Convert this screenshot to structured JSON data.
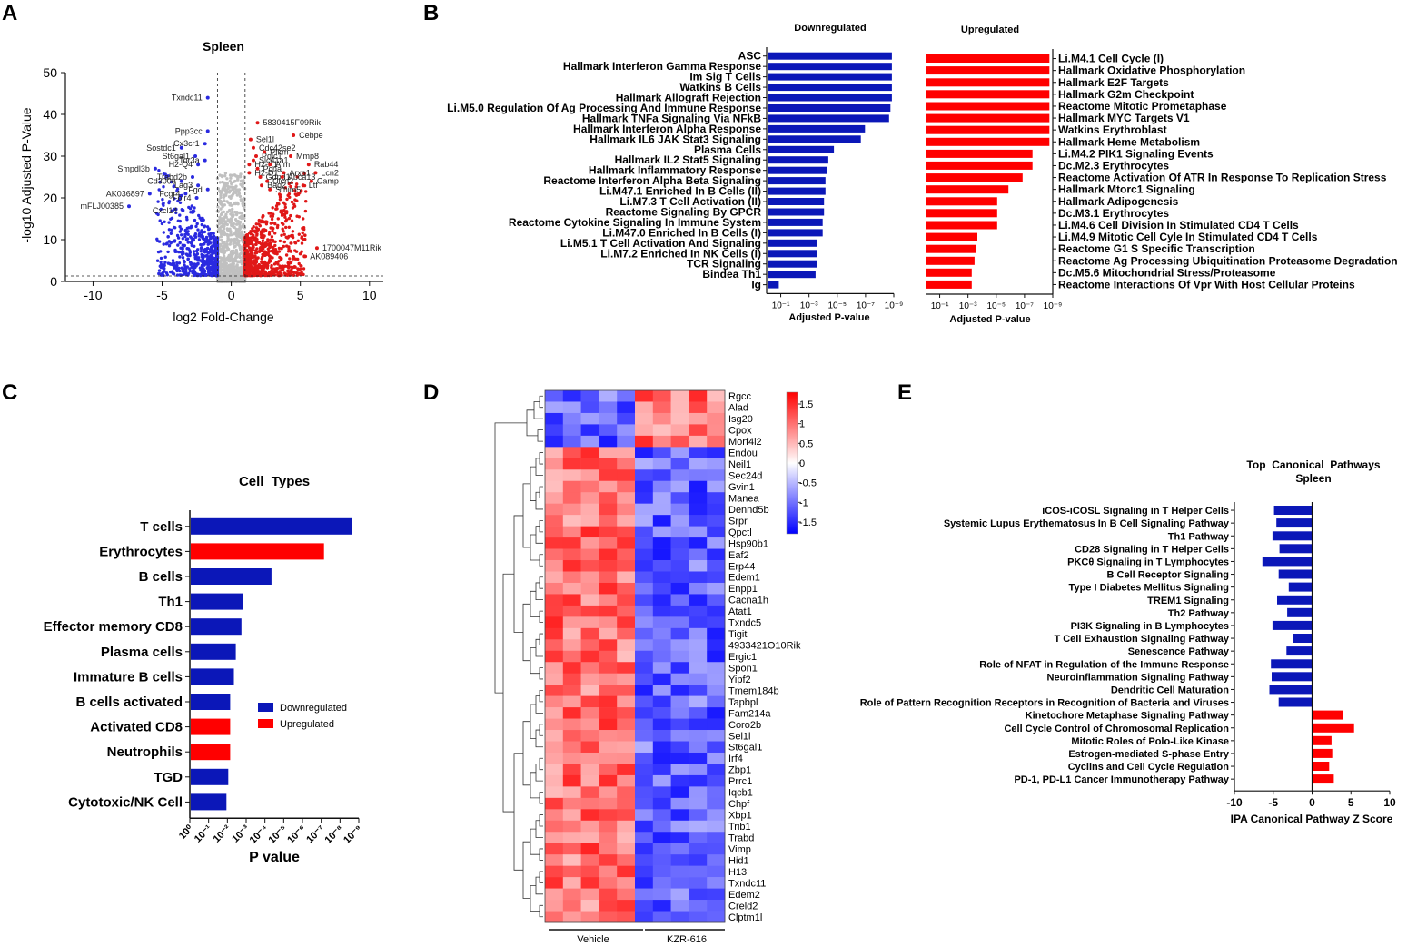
{
  "panels": {
    "A": "A",
    "B": "B",
    "C": "C",
    "D": "D",
    "E": "E"
  },
  "colors": {
    "down": "#0b17b8",
    "up": "#ff0000",
    "down_pt": "#2a2ae0",
    "up_pt": "#e01818",
    "ns_pt": "#c0c0c0"
  },
  "chart_data": [
    {
      "id": "A",
      "type": "scatter",
      "title": "Spleen",
      "xlabel": "log2 Fold-Change",
      "ylabel": "-log10 Adjusted P-Value",
      "xlim": [
        -12,
        11
      ],
      "ylim": [
        0,
        50
      ],
      "xticks": [
        "-10",
        "-5",
        "0",
        "5",
        "10"
      ],
      "yticks": [
        "0",
        "10",
        "20",
        "30",
        "40",
        "50"
      ],
      "thresholds": {
        "fc": [
          -1,
          1
        ],
        "padj": 1.3
      },
      "down_labels": [
        {
          "gene": "Txndc11",
          "x": -1.7,
          "y": 44
        },
        {
          "gene": "Ppp3cc",
          "x": -1.7,
          "y": 36
        },
        {
          "gene": "Cx3cr1",
          "x": -1.9,
          "y": 33
        },
        {
          "gene": "Sostdc1",
          "x": -3.6,
          "y": 32
        },
        {
          "gene": "St6gal1",
          "x": -2.6,
          "y": 30
        },
        {
          "gene": "Tor3a",
          "x": -1.9,
          "y": 29
        },
        {
          "gene": "H2-Q4",
          "x": -2.4,
          "y": 28
        },
        {
          "gene": "Smpdl3b",
          "x": -5.5,
          "y": 27
        },
        {
          "gene": "Trabd2b",
          "x": -2.8,
          "y": 25
        },
        {
          "gene": "Cd300e",
          "x": -3.6,
          "y": 24
        },
        {
          "gene": "Lag3",
          "x": -2.4,
          "y": 23
        },
        {
          "gene": "Fgd",
          "x": -1.7,
          "y": 22
        },
        {
          "gene": "AK036897",
          "x": -5.9,
          "y": 21
        },
        {
          "gene": "Fcgr4",
          "x": -3.3,
          "y": 21
        },
        {
          "gene": "Folr4",
          "x": -2.5,
          "y": 20
        },
        {
          "gene": "mFLJ00385",
          "x": -7.4,
          "y": 18
        },
        {
          "gene": "Cxcl14",
          "x": -3.5,
          "y": 17
        }
      ],
      "up_labels": [
        {
          "gene": "5830415F09Rik",
          "x": 1.9,
          "y": 38
        },
        {
          "gene": "Cebpe",
          "x": 4.5,
          "y": 35
        },
        {
          "gene": "Sel1l",
          "x": 1.4,
          "y": 34
        },
        {
          "gene": "Cdc42se2",
          "x": 1.6,
          "y": 32
        },
        {
          "gene": "Pqlc1",
          "x": 1.8,
          "y": 30
        },
        {
          "gene": "Pfkm",
          "x": 2.4,
          "y": 31
        },
        {
          "gene": "Slc41a1",
          "x": 1.6,
          "y": 29
        },
        {
          "gene": "H2-K1",
          "x": 1.3,
          "y": 28
        },
        {
          "gene": "Pcna",
          "x": 1.9,
          "y": 27
        },
        {
          "gene": "H2-D1",
          "x": 1.3,
          "y": 26
        },
        {
          "gene": "Mmp8",
          "x": 4.3,
          "y": 30
        },
        {
          "gene": "Afm",
          "x": 2.8,
          "y": 28
        },
        {
          "gene": "Rab44",
          "x": 5.6,
          "y": 28
        },
        {
          "gene": "Arxa1",
          "x": 3.8,
          "y": 26
        },
        {
          "gene": "Lcn2",
          "x": 6.1,
          "y": 26
        },
        {
          "gene": "Gdpd1",
          "x": 2.1,
          "y": 25
        },
        {
          "gene": "Abca13",
          "x": 3.7,
          "y": 25
        },
        {
          "gene": "Camp",
          "x": 5.8,
          "y": 24
        },
        {
          "gene": "Clcn2",
          "x": 2.6,
          "y": 24
        },
        {
          "gene": "Ltf",
          "x": 5.2,
          "y": 23
        },
        {
          "gene": "Bag2",
          "x": 2.2,
          "y": 23
        },
        {
          "gene": "Smim5",
          "x": 2.8,
          "y": 22
        },
        {
          "gene": "1700047M11Rik",
          "x": 6.2,
          "y": 8
        },
        {
          "gene": "AK089406",
          "x": 5.3,
          "y": 6
        }
      ]
    },
    {
      "id": "B-down",
      "type": "bar",
      "title": "Downregulated",
      "xlabel": "Adjusted P-value",
      "xticks": [
        "10⁻¹",
        "10⁻³",
        "10⁻⁵",
        "10⁻⁷",
        "10⁻⁹"
      ],
      "xlim": [
        0,
        9
      ],
      "categories": [
        "ASC",
        "Hallmark Interferon Gamma Response",
        "Im Sig T Cells",
        "Watkins B Cells",
        "Hallmark Allograft Rejection",
        "Li.M5.0 Regulation Of Ag Processing And Immune Response",
        "Hallmark TNFa Signaling Via NFkB",
        "Hallmark Interferon Alpha Response",
        "Hallmark IL6 JAK Stat3 Signaling",
        "Plasma Cells",
        "Hallmark IL2 Stat5 Signaling",
        "Hallmark Inflammatory Response",
        "Reactome Interferon Alpha Beta Signaling",
        "Li.M47.1 Enriched In B Cells (II)",
        "Li.M7.3 T Cell Activation (II)",
        "Reactome Signaling By GPCR",
        "Reactome Cytokine Signaling In Immune System",
        "Li.M47.0 Enriched In B Cells (I)",
        "Li.M5.1 T Cell Activation And Signaling",
        "Li.M7.2 Enriched In NK Cells (I)",
        "TCR Signaling",
        "Bindea Th1",
        "Ig"
      ],
      "values": [
        8.8,
        8.8,
        8.8,
        8.8,
        8.8,
        8.7,
        8.6,
        6.9,
        6.6,
        4.7,
        4.3,
        4.2,
        4.1,
        4.1,
        4.0,
        4.0,
        3.9,
        3.9,
        3.5,
        3.5,
        3.5,
        3.4,
        0.8
      ]
    },
    {
      "id": "B-up",
      "type": "bar",
      "title": "Upregulated",
      "xlabel": "Adjusted P-value",
      "xticks": [
        "10⁻¹",
        "10⁻³",
        "10⁻⁵",
        "10⁻⁷",
        "10⁻⁹"
      ],
      "xlim": [
        0,
        9
      ],
      "categories": [
        "Li.M4.1 Cell Cycle (I)",
        "Hallmark Oxidative Phosphorylation",
        "Hallmark E2F Targets",
        "Hallmark G2m Checkpoint",
        "Reactome Mitotic Prometaphase",
        "Hallmark MYC Targets V1",
        "Watkins Erythroblast",
        "Hallmark Heme Metabolism",
        "Li.M4.2 PIK1 Signaling Events",
        "Dc.M2.3 Erythrocytes",
        "Reactome Activation Of ATR In Response To Replication Stress",
        "Hallmark Mtorc1 Signaling",
        "Hallmark Adipogenesis",
        "Dc.M3.1 Erythrocytes",
        "Li.M4.6 Cell Division In Stimulated CD4 T Cells",
        "Li.M4.9 Mitotic Cell Cyle In Stimulated CD4 T Cells",
        "Reactome G1 S Specific Transcription",
        "Reactome Ag Processing Ubiquitination Proteasome Degradation",
        "Dc.M5.6 Mitochondrial Stress/Proteasome",
        "Reactome Interactions Of Vpr With Host Cellular Proteins"
      ],
      "values": [
        8.7,
        8.7,
        8.7,
        8.7,
        8.7,
        8.7,
        8.7,
        8.7,
        7.5,
        7.5,
        6.8,
        5.8,
        5.0,
        5.0,
        5.0,
        3.6,
        3.5,
        3.4,
        3.2,
        3.2
      ]
    },
    {
      "id": "C",
      "type": "bar",
      "title": "Cell  Types",
      "xlabel": "P value",
      "xticks": [
        "10⁰",
        "10⁻¹",
        "10⁻²",
        "10⁻³",
        "10⁻⁴",
        "10⁻⁵",
        "10⁻⁶",
        "10⁻⁷",
        "10⁻⁸",
        "10⁻⁹"
      ],
      "xlim": [
        0,
        9
      ],
      "categories": [
        "T cells",
        "Erythrocytes",
        "B cells",
        "Th1",
        "Effector memory CD8",
        "Plasma cells",
        "Immature B cells",
        "B cells activated",
        "Activated CD8",
        "Neutrophils",
        "TGD",
        "Cytotoxic/NK Cell"
      ],
      "values": [
        8.6,
        7.1,
        4.3,
        2.8,
        2.7,
        2.4,
        2.3,
        2.1,
        2.1,
        2.1,
        2.0,
        1.9
      ],
      "direction": [
        "down",
        "up",
        "down",
        "down",
        "down",
        "down",
        "down",
        "down",
        "up",
        "up",
        "down",
        "down"
      ],
      "legend": [
        "Downregulated",
        "Upregulated"
      ]
    },
    {
      "id": "D",
      "type": "heatmap",
      "genes": [
        "Rgcc",
        "Alad",
        "Isg20",
        "Cpox",
        "Morf4l2",
        "Endou",
        "Neil1",
        "Sec24d",
        "Gvin1",
        "Manea",
        "Dennd5b",
        "Srpr",
        "Qpctl",
        "Hsp90b1",
        "Eaf2",
        "Erp44",
        "Edem1",
        "Enpp1",
        "Cacna1h",
        "Atat1",
        "Txndc5",
        "Tigit",
        "4933421O10Rik",
        "Ergic1",
        "Spon1",
        "Yipf2",
        "Tmem184b",
        "Tapbpl",
        "Fam214a",
        "Coro2b",
        "Sel1l",
        "St6gal1",
        "Irf4",
        "Zbp1",
        "Prrc1",
        "Iqcb1",
        "Chpf",
        "Xbp1",
        "Trib1",
        "Trabd",
        "Vimp",
        "Hid1",
        "H13",
        "Txndc11",
        "Edem2",
        "Creld2",
        "Clptm1l"
      ],
      "groups": [
        "Vehicle",
        "KZR-616"
      ],
      "samples_per_group": 5,
      "pattern": "first 5 genes up in KZR-616 (blue in Vehicle, red in KZR-616); remaining 42 genes up in Vehicle (red) and down in KZR-616 (blue)",
      "colorbar_ticks": [
        "1.5",
        "1",
        "0.5",
        "0",
        "-0.5",
        "-1",
        "-1.5"
      ],
      "range": [
        -1.8,
        1.8
      ]
    },
    {
      "id": "E",
      "type": "bar",
      "title": "Top  Canonical  Pathways",
      "subtitle": "Spleen",
      "xlabel": "IPA Canonical Pathway Z Score",
      "xlim": [
        -10,
        10
      ],
      "xticks": [
        "-10",
        "-5",
        "0",
        "5",
        "10"
      ],
      "categories": [
        "iCOS-iCOSL Signaling in T Helper Cells",
        "Systemic Lupus Erythematosus In B Cell Signaling Pathway",
        "Th1 Pathway",
        "CD28 Signaling in T Helper Cells",
        "PKCθ Signaling in T Lymphocytes",
        "B Cell Receptor Signaling",
        "Type I Diabetes Mellitus Signaling",
        "TREM1 Signaling",
        "Th2 Pathway",
        "PI3K Signaling in B Lymphocytes",
        "T Cell Exhaustion Signaling Pathway",
        "Senescence Pathway",
        "Role of NFAT in Regulation of the Immune Response",
        "Neuroinflammation Signaling Pathway",
        "Dendritic Cell Maturation",
        "Role of Pattern Recognition Receptors in Recognition of Bacteria and Viruses",
        "Kinetochore Metaphase Signaling Pathway",
        "Cell Cycle Control of Chromosomal Replication",
        "Mitotic Roles of Polo-Like Kinase",
        "Estrogen-mediated S-phase Entry",
        "Cyclins and Cell Cycle Regulation",
        "PD-1, PD-L1 Cancer Immunotherapy Pathway"
      ],
      "values": [
        -4.9,
        -4.6,
        -5.1,
        -4.2,
        -6.4,
        -4.3,
        -3.0,
        -4.5,
        -3.2,
        -5.1,
        -2.4,
        -3.3,
        -5.3,
        -5.2,
        -5.5,
        -4.3,
        4.0,
        5.4,
        2.5,
        2.6,
        2.2,
        2.8
      ]
    }
  ]
}
